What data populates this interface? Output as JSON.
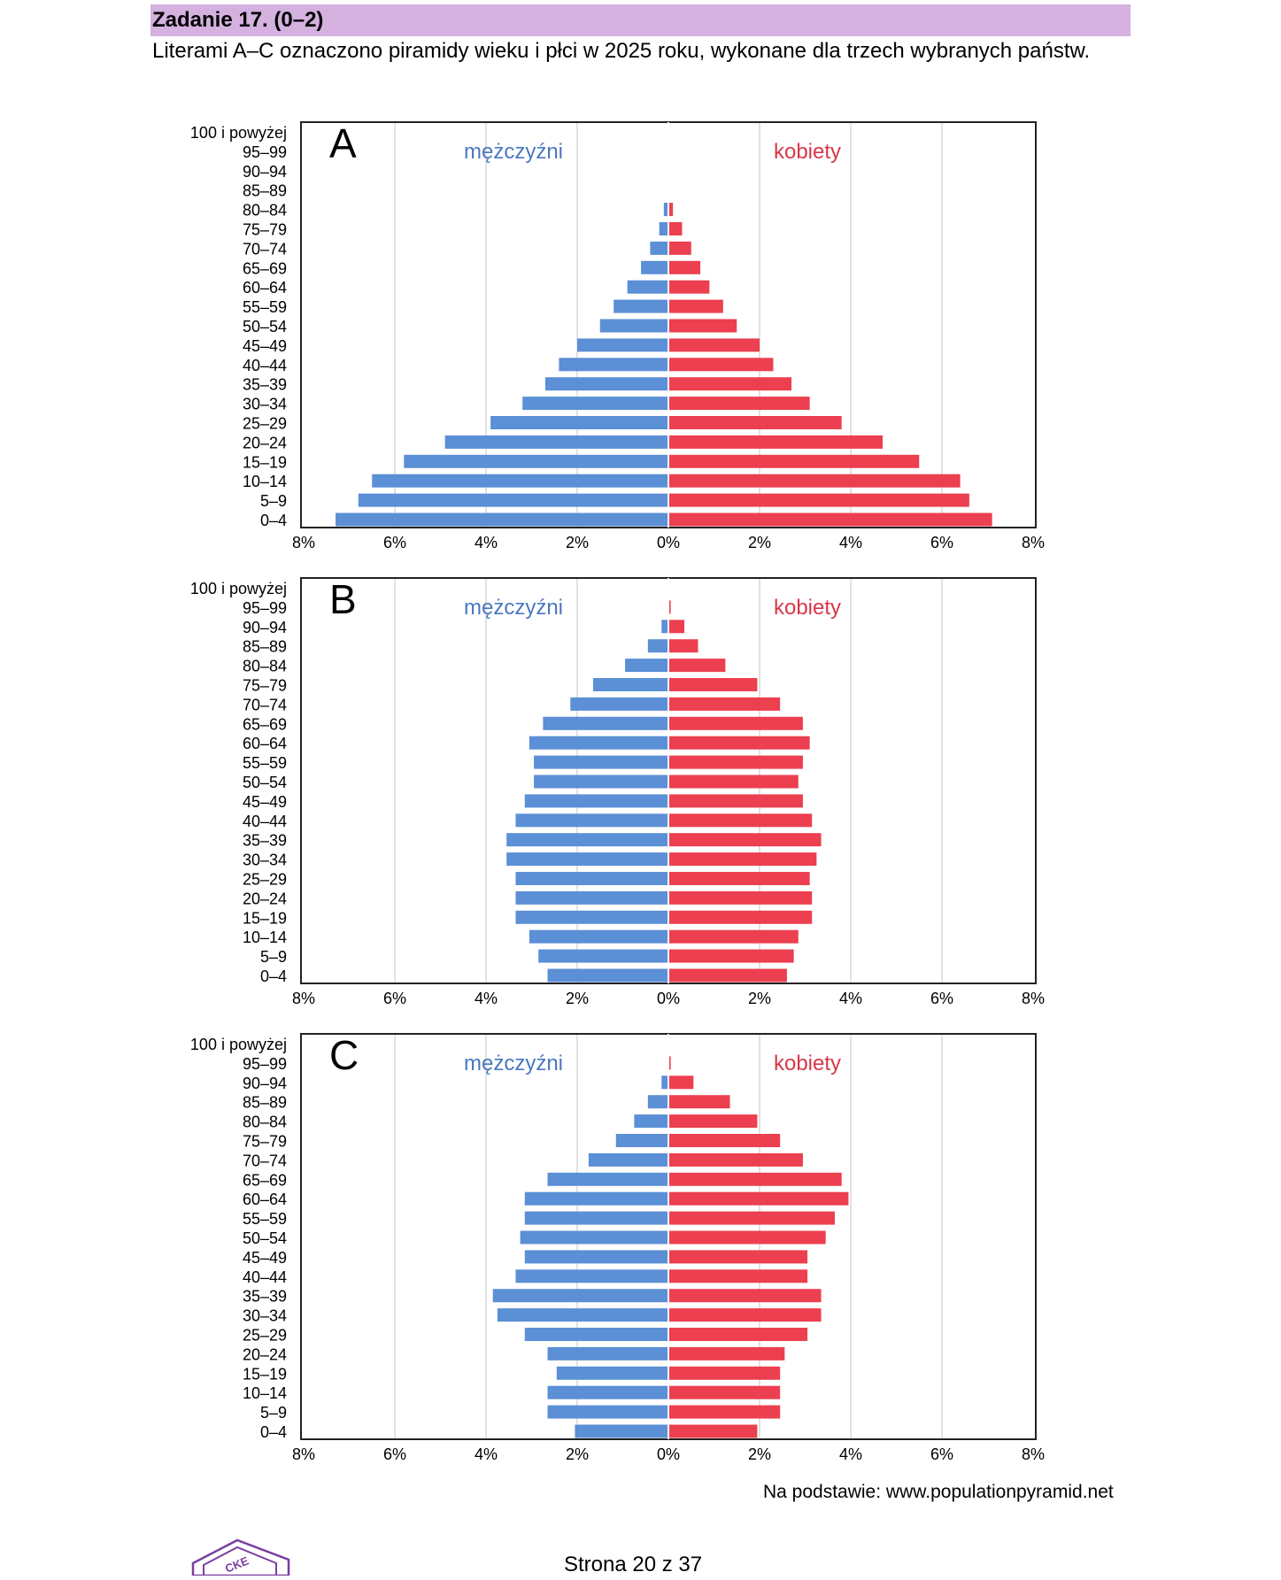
{
  "task": {
    "title": "Zadanie 17. (0–2)",
    "intro": "Literami A–C oznaczono piramidy wieku i płci w 2025 roku, wykonane dla trzech wybranych państw."
  },
  "colors": {
    "male": "#5b8fd6",
    "female": "#ec3f4f",
    "male_label": "#4a78c0",
    "female_label": "#d8374a",
    "header_bg": "#d4b1df"
  },
  "chart_data": [
    {
      "type": "bar",
      "panel_label": "A",
      "series_labels": {
        "male": "mężczyźni",
        "female": "kobiety"
      },
      "categories": [
        "100 i powyżej",
        "95–99",
        "90–94",
        "85–89",
        "80–84",
        "75–79",
        "70–74",
        "65–69",
        "60–64",
        "55–59",
        "50–54",
        "45–49",
        "40–44",
        "35–39",
        "30–34",
        "25–29",
        "20–24",
        "15–19",
        "10–14",
        "5–9",
        "0–4"
      ],
      "series": [
        {
          "name": "mężczyźni",
          "values": [
            0,
            0,
            0,
            0,
            0.1,
            0.2,
            0.4,
            0.6,
            0.9,
            1.2,
            1.5,
            2.0,
            2.4,
            2.7,
            3.2,
            3.9,
            4.9,
            5.8,
            6.5,
            6.8,
            7.3
          ]
        },
        {
          "name": "kobiety",
          "values": [
            0,
            0,
            0,
            0,
            0.1,
            0.3,
            0.5,
            0.7,
            0.9,
            1.2,
            1.5,
            2.0,
            2.3,
            2.7,
            3.1,
            3.8,
            4.7,
            5.5,
            6.4,
            6.6,
            7.1
          ]
        }
      ],
      "x_ticks": [
        "8%",
        "6%",
        "4%",
        "2%",
        "0%",
        "2%",
        "4%",
        "6%",
        "8%"
      ],
      "xlim": [
        -8,
        8
      ],
      "grid": true
    },
    {
      "type": "bar",
      "panel_label": "B",
      "series_labels": {
        "male": "mężczyźni",
        "female": "kobiety"
      },
      "categories": [
        "100 i powyżej",
        "95–99",
        "90–94",
        "85–89",
        "80–84",
        "75–79",
        "70–74",
        "65–69",
        "60–64",
        "55–59",
        "50–54",
        "45–49",
        "40–44",
        "35–39",
        "30–34",
        "25–29",
        "20–24",
        "15–19",
        "10–14",
        "5–9",
        "0–4"
      ],
      "series": [
        {
          "name": "mężczyźni",
          "values": [
            0,
            0,
            0.15,
            0.45,
            0.95,
            1.65,
            2.15,
            2.75,
            3.05,
            2.95,
            2.95,
            3.15,
            3.35,
            3.55,
            3.55,
            3.35,
            3.35,
            3.35,
            3.05,
            2.85,
            2.65
          ]
        },
        {
          "name": "kobiety",
          "values": [
            0,
            0.05,
            0.35,
            0.65,
            1.25,
            1.95,
            2.45,
            2.95,
            3.1,
            2.95,
            2.85,
            2.95,
            3.15,
            3.35,
            3.25,
            3.1,
            3.15,
            3.15,
            2.85,
            2.75,
            2.6
          ]
        }
      ],
      "x_ticks": [
        "8%",
        "6%",
        "4%",
        "2%",
        "0%",
        "2%",
        "4%",
        "6%",
        "8%"
      ],
      "xlim": [
        -8,
        8
      ],
      "grid": true
    },
    {
      "type": "bar",
      "panel_label": "C",
      "series_labels": {
        "male": "mężczyźni",
        "female": "kobiety"
      },
      "categories": [
        "100 i powyżej",
        "95–99",
        "90–94",
        "85–89",
        "80–84",
        "75–79",
        "70–74",
        "65–69",
        "60–64",
        "55–59",
        "50–54",
        "45–49",
        "40–44",
        "35–39",
        "30–34",
        "25–29",
        "20–24",
        "15–19",
        "10–14",
        "5–9",
        "0–4"
      ],
      "series": [
        {
          "name": "mężczyźni",
          "values": [
            0,
            0,
            0.15,
            0.45,
            0.75,
            1.15,
            1.75,
            2.65,
            3.15,
            3.15,
            3.25,
            3.15,
            3.35,
            3.85,
            3.75,
            3.15,
            2.65,
            2.45,
            2.65,
            2.65,
            2.05
          ]
        },
        {
          "name": "kobiety",
          "values": [
            0,
            0.05,
            0.55,
            1.35,
            1.95,
            2.45,
            2.95,
            3.8,
            3.95,
            3.65,
            3.45,
            3.05,
            3.05,
            3.35,
            3.35,
            3.05,
            2.55,
            2.45,
            2.45,
            2.45,
            1.95
          ]
        }
      ],
      "x_ticks": [
        "8%",
        "6%",
        "4%",
        "2%",
        "0%",
        "2%",
        "4%",
        "6%",
        "8%"
      ],
      "xlim": [
        -8,
        8
      ],
      "grid": true
    }
  ],
  "source": "Na podstawie: www.populationpyramid.net",
  "page": "Strona 20 z 37",
  "logo_text": "CKE"
}
